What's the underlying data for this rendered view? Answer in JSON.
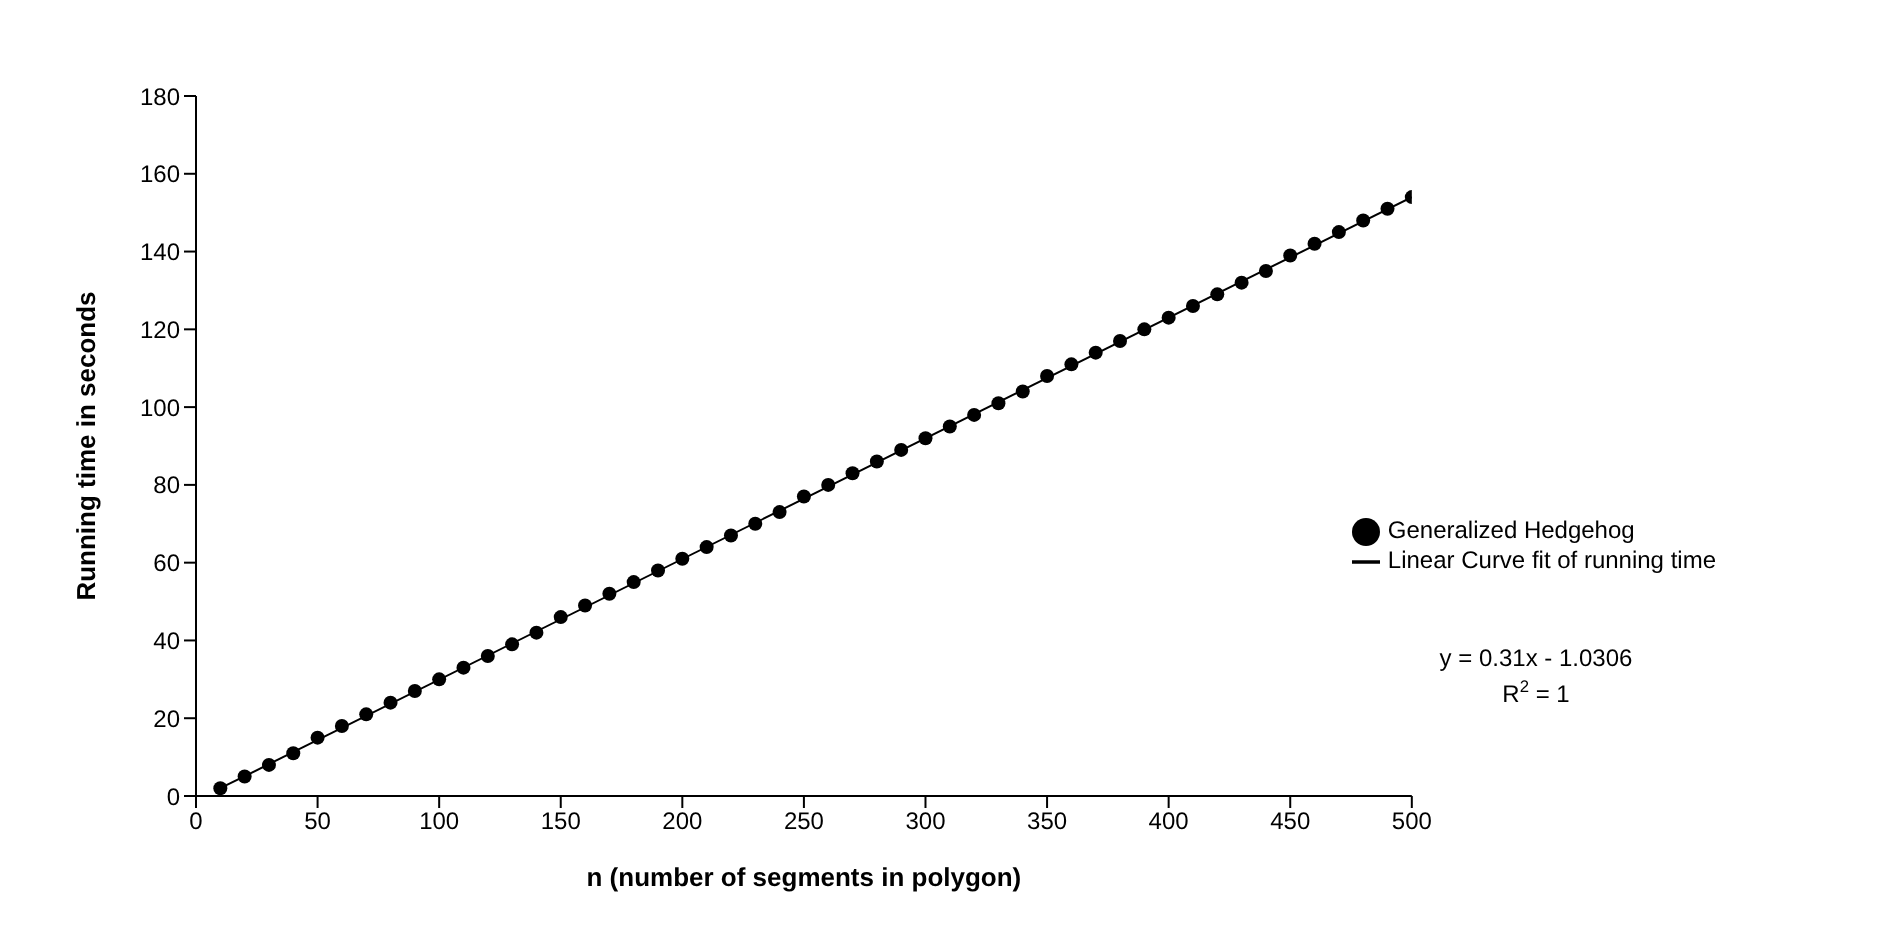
{
  "chart_data": {
    "type": "scatter",
    "xlabel": "n (number of segments in polygon)",
    "ylabel": "Running time in seconds",
    "xlim": [
      0,
      500
    ],
    "xticks": [
      0,
      50,
      100,
      150,
      200,
      250,
      300,
      350,
      400,
      450,
      500
    ],
    "ylim": [
      0,
      180
    ],
    "yticks": [
      0,
      20,
      40,
      60,
      80,
      100,
      120,
      140,
      160,
      180
    ],
    "legend": "right",
    "marker": "circle",
    "series": [
      {
        "name": "Generalized Hedgehog",
        "color": "#000000",
        "x": [
          10,
          20,
          30,
          40,
          50,
          60,
          70,
          80,
          90,
          100,
          110,
          120,
          130,
          140,
          150,
          160,
          170,
          180,
          190,
          200,
          210,
          220,
          230,
          240,
          250,
          260,
          270,
          280,
          290,
          300,
          310,
          320,
          330,
          340,
          350,
          360,
          370,
          380,
          390,
          400,
          410,
          420,
          430,
          440,
          450,
          460,
          470,
          480,
          490,
          500
        ],
        "values": [
          2,
          5,
          8,
          11,
          15,
          18,
          21,
          24,
          27,
          30,
          33,
          36,
          39,
          42,
          46,
          49,
          52,
          55,
          58,
          61,
          64,
          67,
          70,
          73,
          77,
          80,
          83,
          86,
          89,
          92,
          95,
          98,
          101,
          104,
          108,
          111,
          114,
          117,
          120,
          123,
          126,
          129,
          132,
          135,
          139,
          142,
          145,
          148,
          151,
          154
        ]
      },
      {
        "name": "Linear Curve fit of running time",
        "color": "#000000",
        "type": "line",
        "marker": "none",
        "x": [
          10,
          500
        ],
        "values": [
          2,
          154
        ]
      }
    ],
    "annotations": [
      "y = 0.31x - 1.0306",
      "R$^{2}$ = 1"
    ]
  }
}
